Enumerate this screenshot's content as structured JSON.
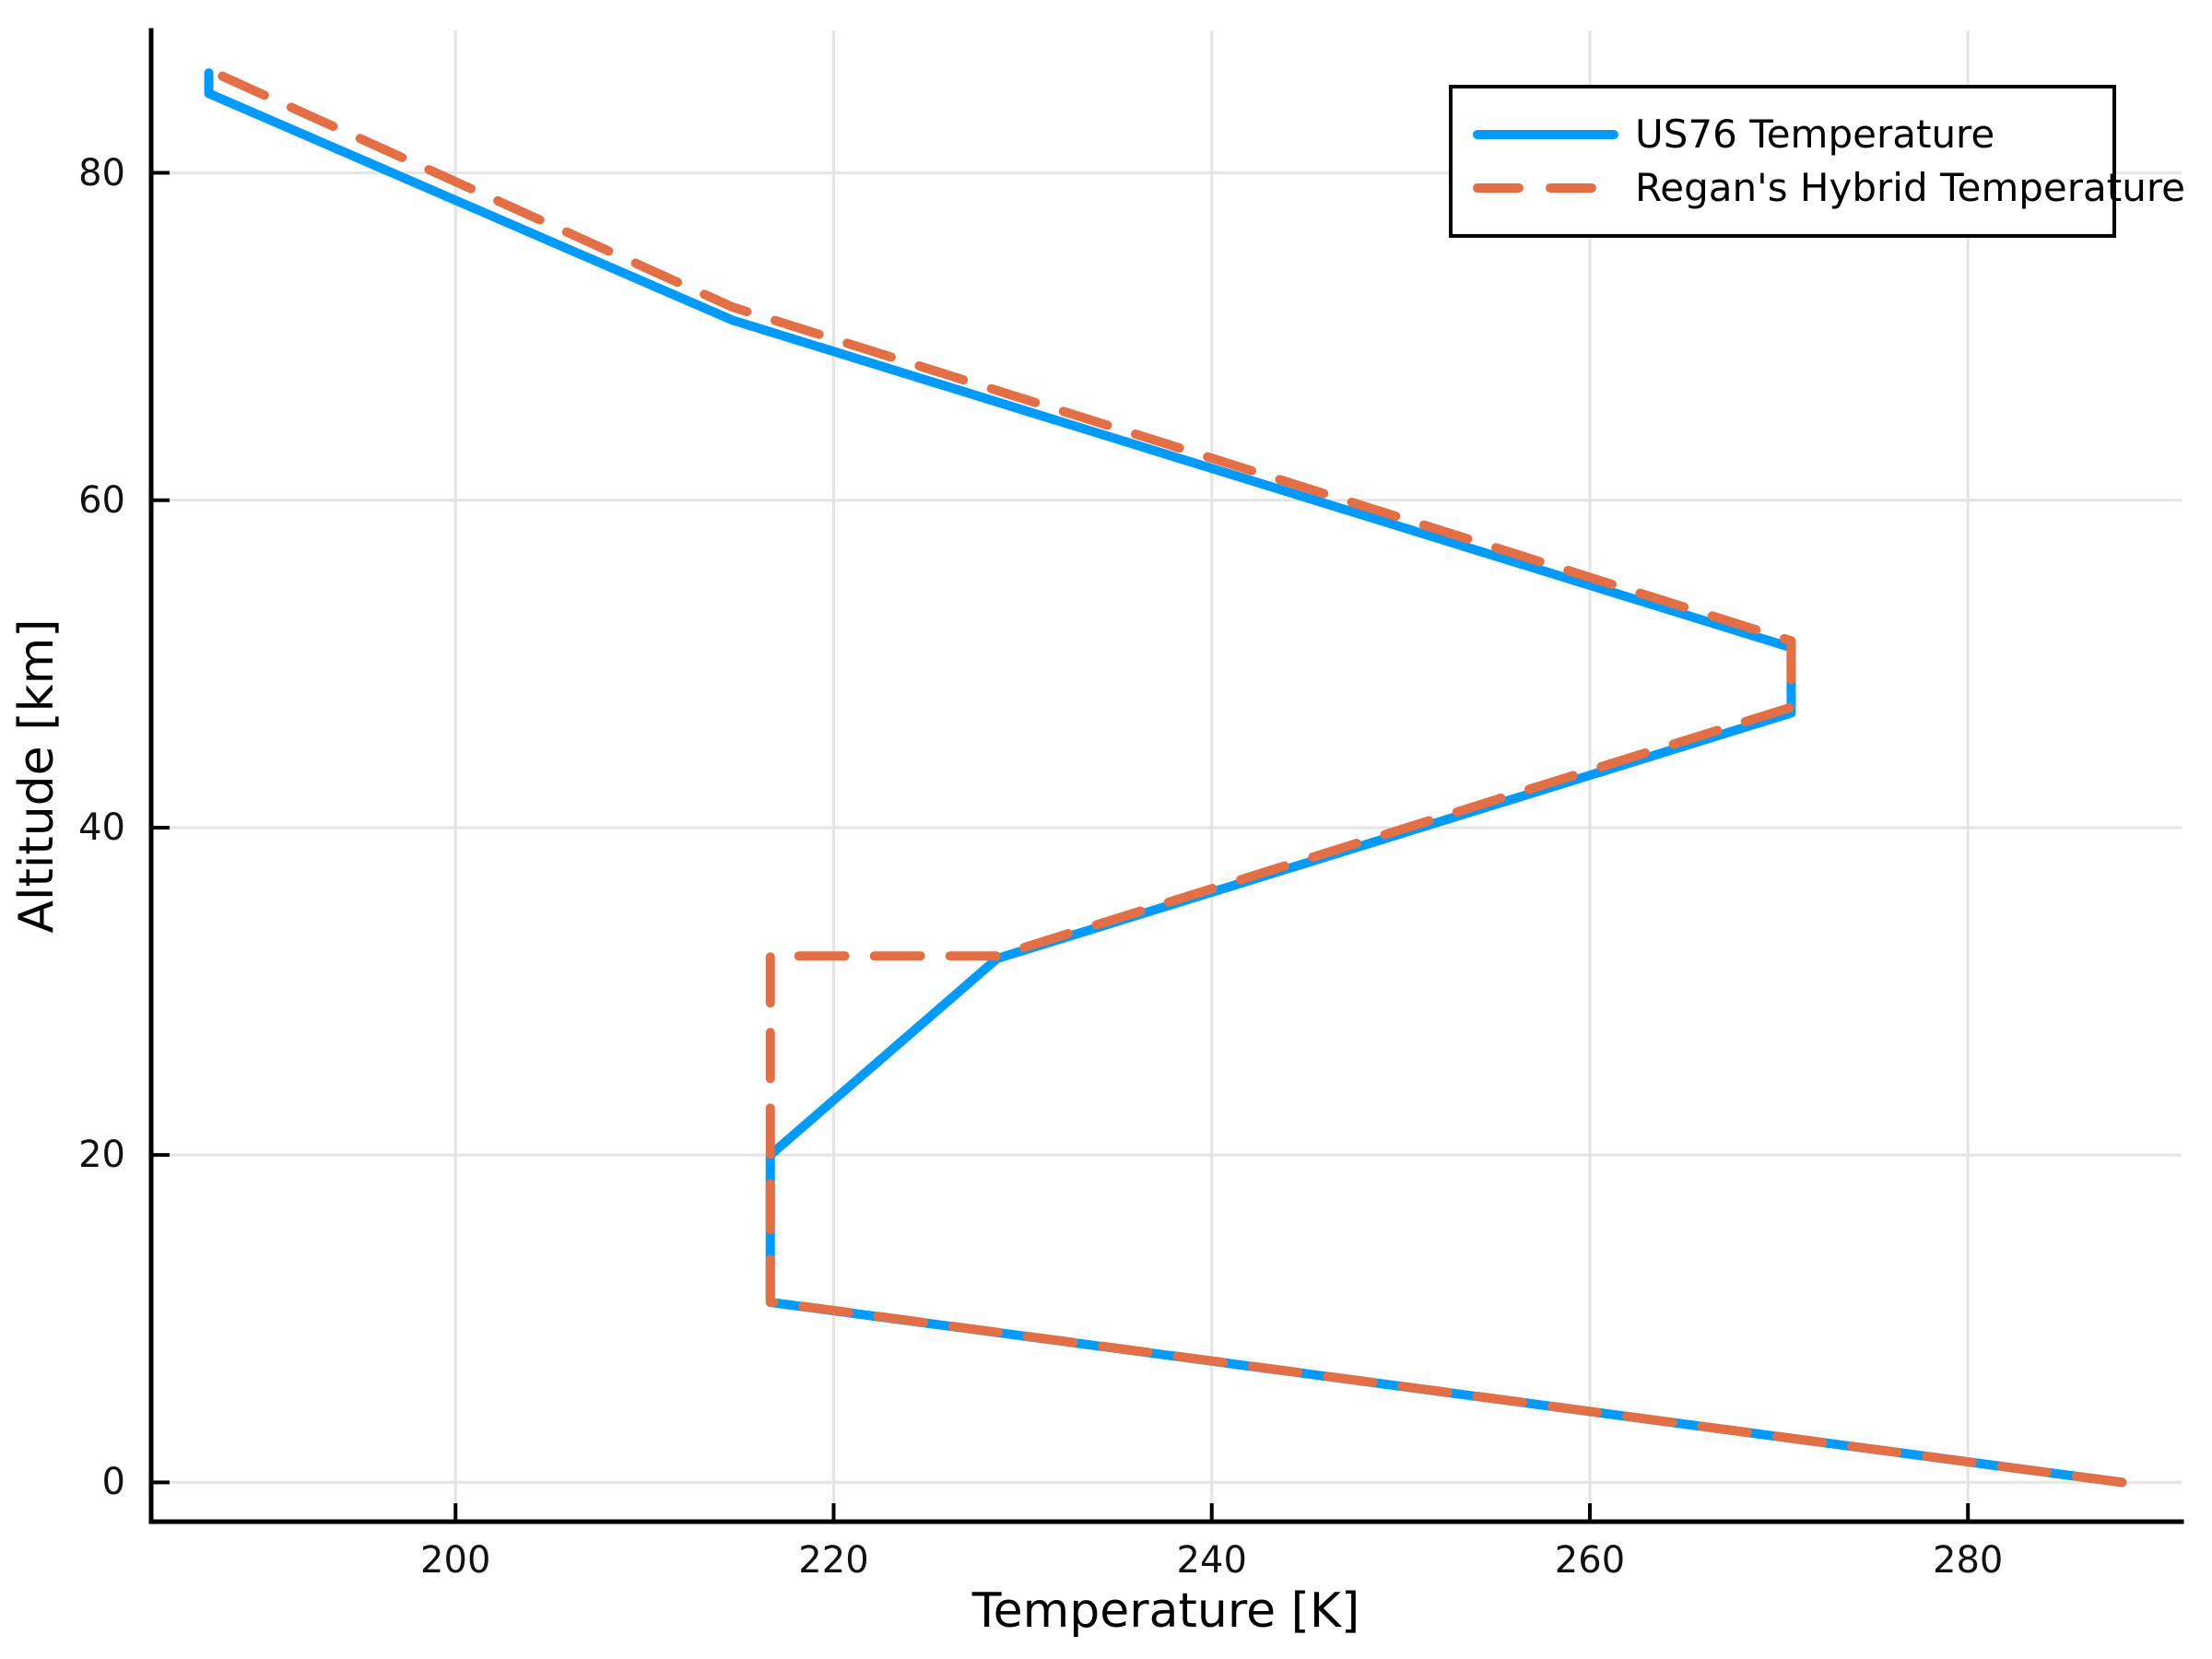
{
  "chart_data": {
    "type": "line",
    "title": "",
    "xlabel": "Temperature [K]",
    "ylabel": "Altitude [km]",
    "xlim": [
      183.9,
      291.3
    ],
    "ylim": [
      -2.4,
      88.7
    ],
    "xticks": [
      200,
      220,
      240,
      260,
      280
    ],
    "yticks": [
      0,
      20,
      40,
      60,
      80
    ],
    "grid": true,
    "grid_color": "#e4e4e4",
    "spine_color": "#000000",
    "legend_position": "top-right",
    "series": [
      {
        "name": "US76 Temperature",
        "color": "#009AFA",
        "style": "solid",
        "line_width": 10,
        "x": [
          288.15,
          216.65,
          216.65,
          228.65,
          270.65,
          270.65,
          214.65,
          186.95,
          186.95
        ],
        "y": [
          0,
          11,
          20,
          32,
          47,
          51,
          71,
          84.85,
          86.1
        ]
      },
      {
        "name": "Regan's Hybrid Temperature",
        "color": "#E36F47",
        "style": "dashed",
        "line_width": 10,
        "x": [
          288.15,
          216.65,
          216.65,
          228.65,
          270.65,
          270.65,
          214.65,
          186.95
        ],
        "y": [
          0,
          11.02,
          32.16,
          32.16,
          47.35,
          51.41,
          71.8,
          86.28
        ]
      }
    ]
  }
}
